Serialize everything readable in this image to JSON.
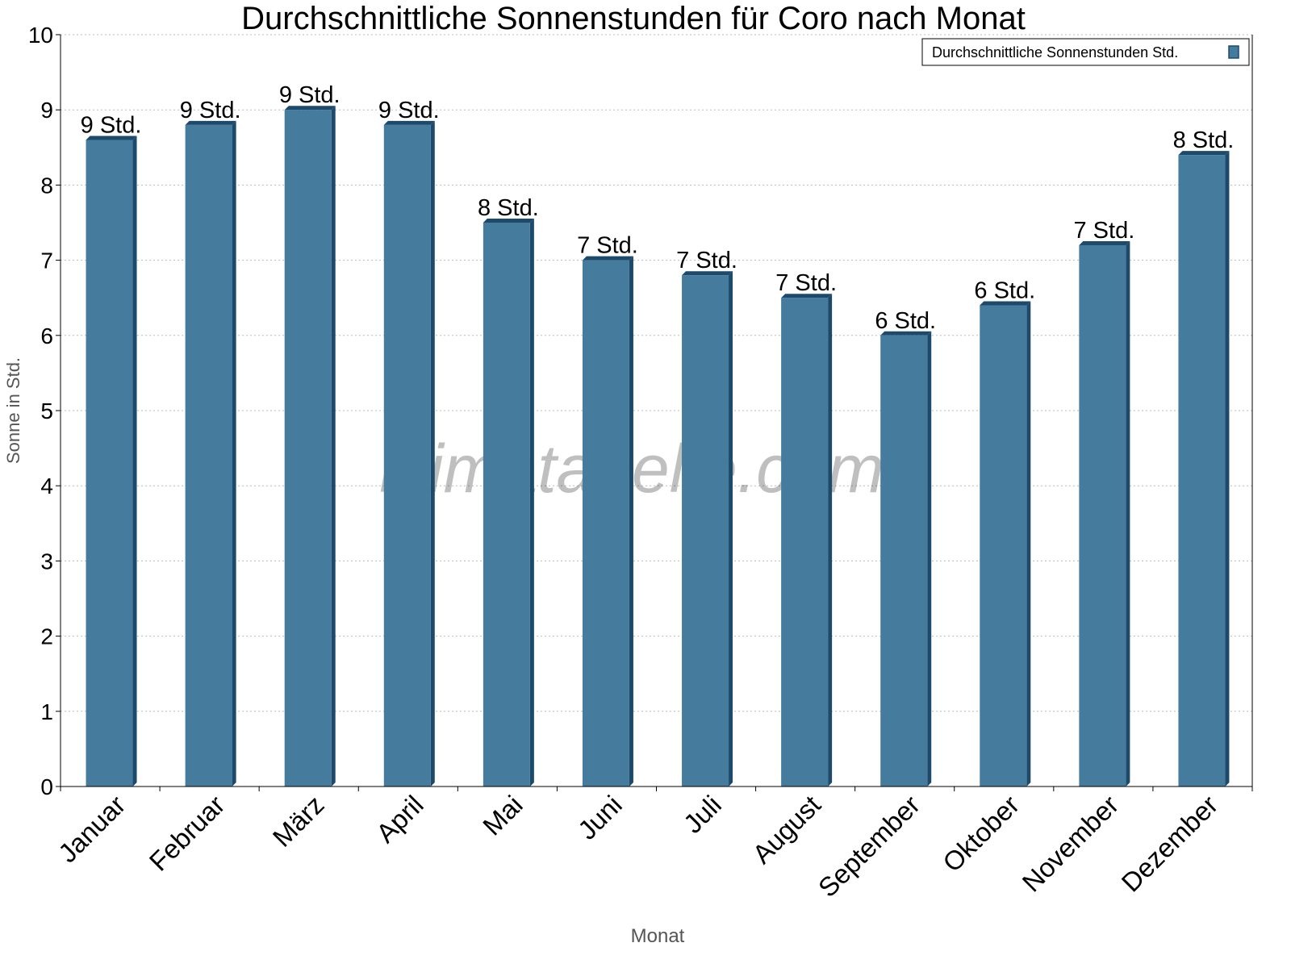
{
  "chart_data": {
    "type": "bar",
    "title": "Durchschnittliche Sonnenstunden für Coro nach Monat",
    "xlabel": "Monat",
    "ylabel": "Sonne in Std.",
    "ylim": [
      0,
      10
    ],
    "yticks": [
      "0",
      "1",
      "2",
      "3",
      "4",
      "5",
      "6",
      "7",
      "8",
      "9",
      "10"
    ],
    "grid": true,
    "legend_position": "top-right",
    "categories": [
      "Januar",
      "Februar",
      "März",
      "April",
      "Mai",
      "Juni",
      "Juli",
      "August",
      "September",
      "Oktober",
      "November",
      "Dezember"
    ],
    "series": [
      {
        "name": "Durchschnittliche Sonnenstunden Std.",
        "values": [
          8.6,
          8.8,
          9.0,
          8.8,
          7.5,
          7.0,
          6.8,
          6.5,
          6.0,
          6.4,
          7.2,
          8.4
        ],
        "data_labels": [
          "9 Std.",
          "9 Std.",
          "9 Std.",
          "9 Std.",
          "8 Std.",
          "7 Std.",
          "7 Std.",
          "7 Std.",
          "6 Std.",
          "6 Std.",
          "7 Std.",
          "8 Std."
        ],
        "color": "#457b9d",
        "side_color": "#1d4a6b"
      }
    ],
    "watermark": "klimatabelle.com"
  }
}
